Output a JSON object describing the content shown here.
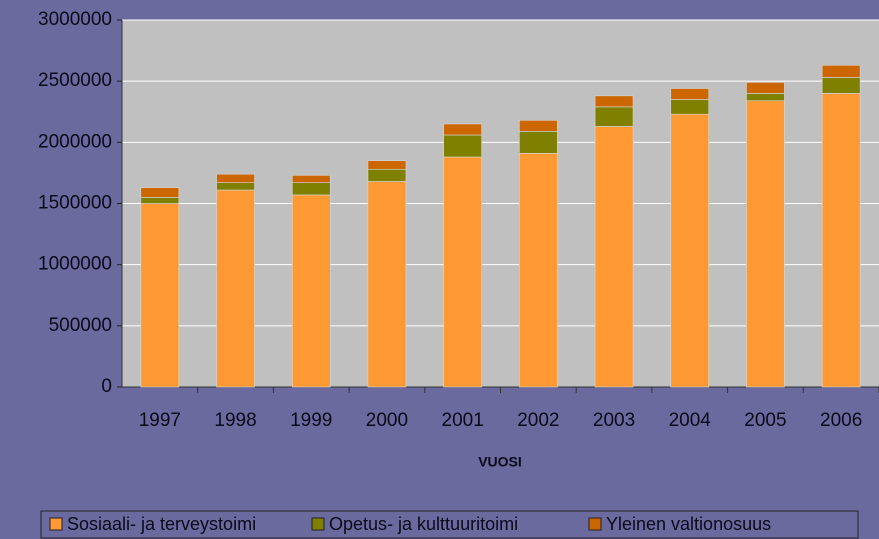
{
  "chart_data": {
    "type": "stacked_bar",
    "x_label": "VUOSI",
    "categories": [
      "1997",
      "1998",
      "1999",
      "2000",
      "2001",
      "2002",
      "2003",
      "2004",
      "2005",
      "2006"
    ],
    "series": [
      {
        "name": "Sosiaali- ja terveystoimi",
        "color": "#ff9933",
        "values": [
          1500000,
          1610000,
          1570000,
          1680000,
          1880000,
          1910000,
          2130000,
          2230000,
          2340000,
          2400000
        ]
      },
      {
        "name": "Opetus- ja kulttuuritoimi",
        "color": "#808000",
        "values": [
          50000,
          60000,
          100000,
          100000,
          180000,
          180000,
          160000,
          120000,
          60000,
          130000
        ]
      },
      {
        "name": "Yleinen valtionosuus",
        "color": "#cc6600",
        "values": [
          80000,
          70000,
          60000,
          70000,
          90000,
          90000,
          90000,
          90000,
          90000,
          100000
        ]
      }
    ],
    "ylim": [
      0,
      3000000
    ],
    "yticks": [
      0,
      500000,
      1000000,
      1500000,
      2000000,
      2500000,
      3000000
    ],
    "grid": true,
    "legend": "bottom"
  }
}
